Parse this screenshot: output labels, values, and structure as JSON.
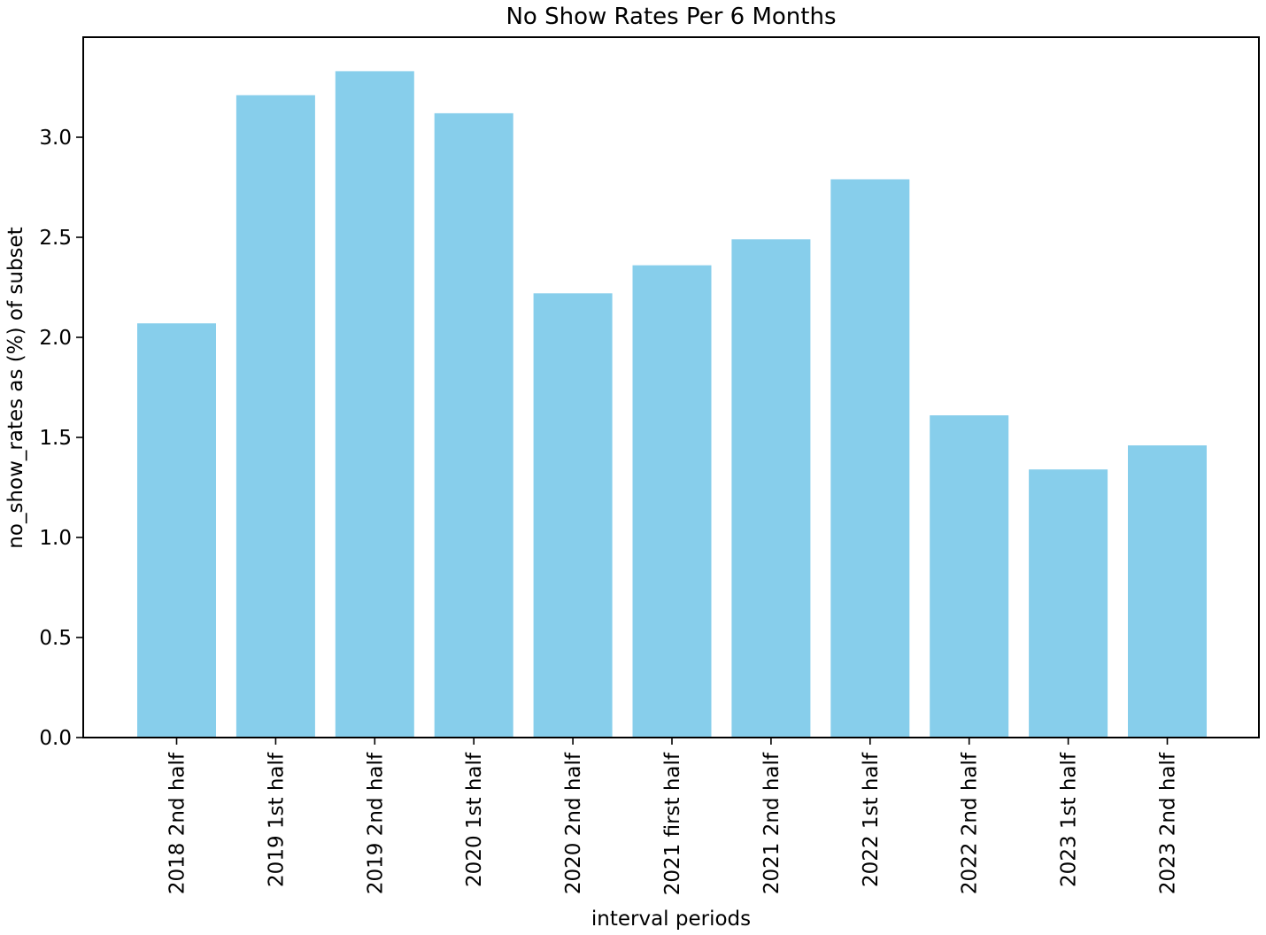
{
  "chart_data": {
    "type": "bar",
    "title": "No Show Rates Per 6 Months",
    "xlabel": "interval periods",
    "ylabel": "no_show_rates as (%) of subset",
    "categories": [
      "2018 2nd half",
      "2019 1st half",
      "2019 2nd half",
      "2020 1st half",
      "2020 2nd half",
      "2021 first half",
      "2021 2nd half",
      "2022 1st half",
      "2022 2nd half",
      "2023 1st half",
      "2023 2nd half"
    ],
    "values": [
      2.07,
      3.21,
      3.33,
      3.12,
      2.22,
      2.36,
      2.49,
      2.79,
      1.61,
      1.34,
      1.46
    ],
    "yticks": [
      0.0,
      0.5,
      1.0,
      1.5,
      2.0,
      2.5,
      3.0
    ],
    "ytick_labels": [
      "0.0",
      "0.5",
      "1.0",
      "1.5",
      "2.0",
      "2.5",
      "3.0"
    ],
    "ylim": [
      0,
      3.5
    ],
    "bar_color": "#87CEEB",
    "grid": false,
    "legend": false
  }
}
